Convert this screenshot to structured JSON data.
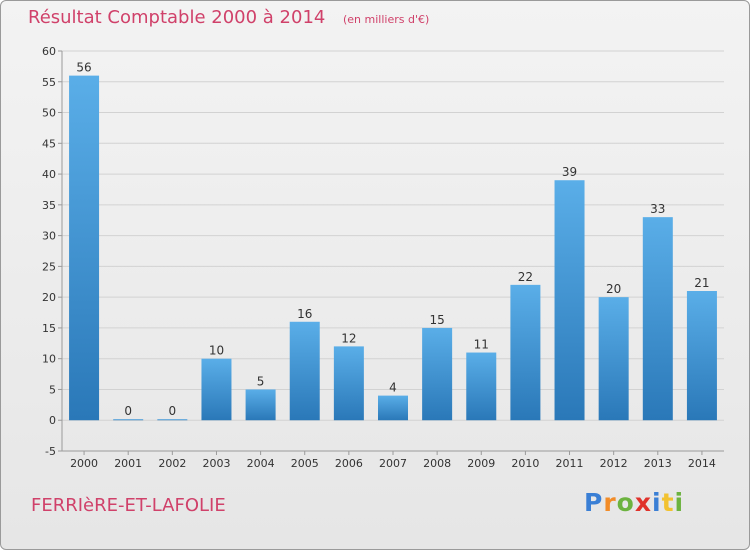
{
  "header": {
    "title": "Résultat Comptable 2000 à 2014",
    "subtitle": "(en milliers d'€)"
  },
  "footer": {
    "commune": "FERRIèRE-ET-LAFOLIE",
    "logo_text": "Proxiti",
    "logo_letters": [
      {
        "ch": "P",
        "color": "#3a7fd5"
      },
      {
        "ch": "r",
        "color": "#f28c28"
      },
      {
        "ch": "o",
        "color": "#6cb33f"
      },
      {
        "ch": "x",
        "color": "#e0322b"
      },
      {
        "ch": "i",
        "color": "#3a7fd5"
      },
      {
        "ch": "t",
        "color": "#f2c230"
      },
      {
        "ch": "i",
        "color": "#6cb33f"
      }
    ]
  },
  "colors": {
    "text_accent": "#d0416a",
    "bar_top": "#5aaee8",
    "bar_bottom": "#2a78b8",
    "grid": "#d2d2d2",
    "axis": "#9a9a9a"
  },
  "chart_data": {
    "type": "bar",
    "title": "Résultat Comptable 2000 à 2014",
    "subtitle": "(en milliers d'€)",
    "xlabel": "",
    "ylabel": "",
    "categories": [
      "2000",
      "2001",
      "2002",
      "2003",
      "2004",
      "2005",
      "2006",
      "2007",
      "2008",
      "2009",
      "2010",
      "2011",
      "2012",
      "2013",
      "2014"
    ],
    "values": [
      56,
      0,
      0,
      10,
      5,
      16,
      12,
      4,
      15,
      11,
      22,
      39,
      20,
      33,
      21
    ],
    "ylim": [
      -5,
      60
    ],
    "yticks": [
      -5,
      0,
      5,
      10,
      15,
      20,
      25,
      30,
      35,
      40,
      45,
      50,
      55,
      60
    ],
    "grid": true
  }
}
